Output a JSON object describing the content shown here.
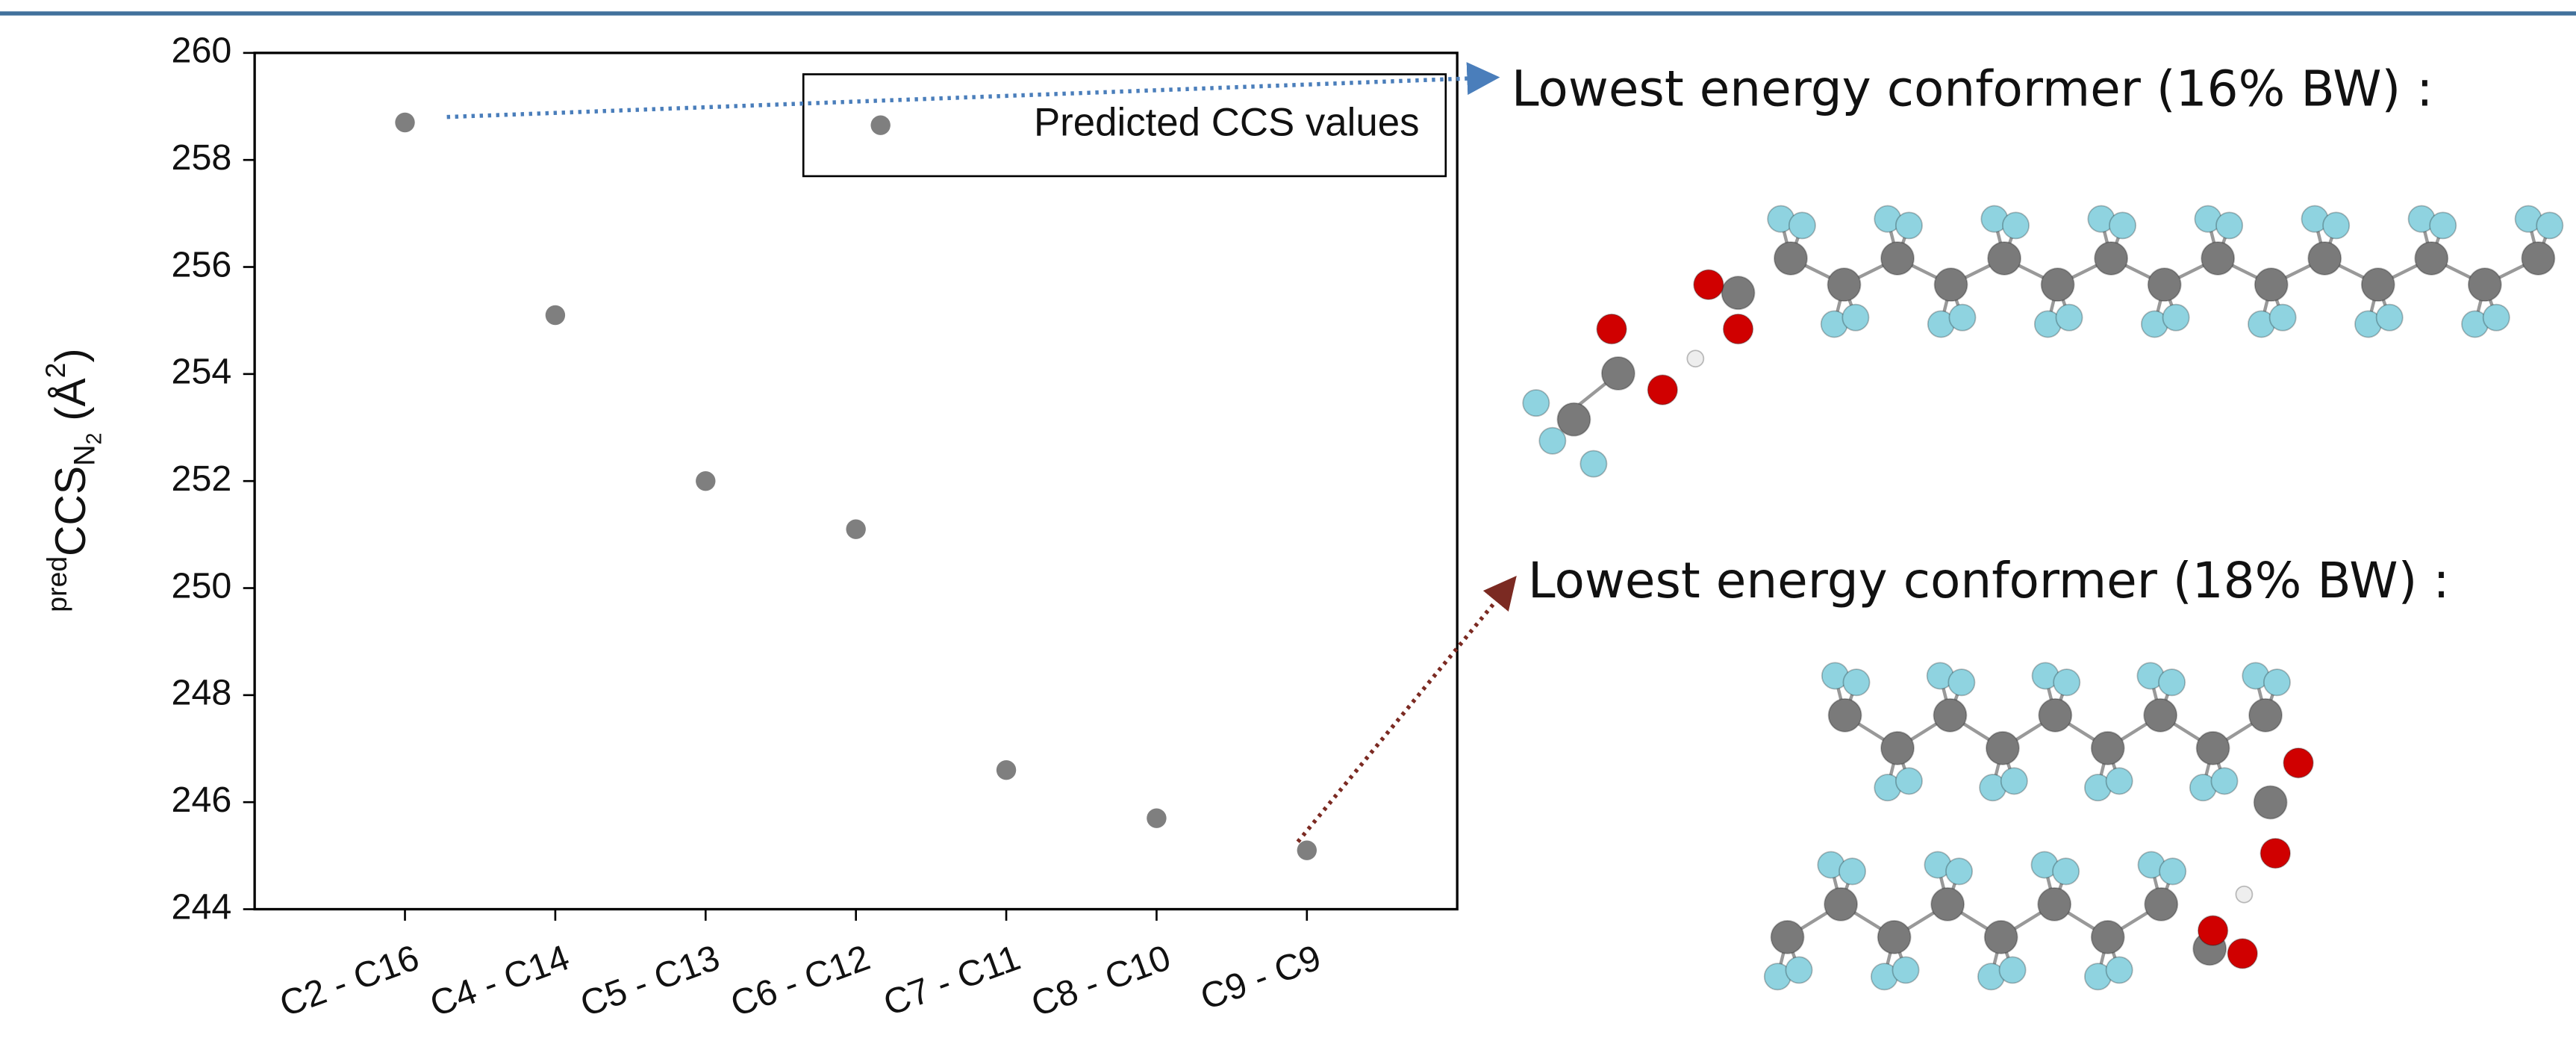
{
  "chart_data": {
    "type": "scatter",
    "categories": [
      "C2 - C16",
      "C4 - C14",
      "C5 - C13",
      "C6 - C12",
      "C7 - C11",
      "C8 - C10",
      "C9 - C9"
    ],
    "series": [
      {
        "name": "Predicted CCS values",
        "color": "#7f7f7f",
        "values": [
          258.7,
          255.1,
          252.0,
          251.1,
          246.6,
          245.7,
          245.1
        ]
      }
    ],
    "y_label": [
      "pred",
      "CCS",
      "N",
      "2",
      " (Å",
      "2",
      ")"
    ],
    "ylim": [
      244,
      260
    ],
    "yticks": [
      244,
      246,
      248,
      250,
      252,
      254,
      256,
      258,
      260
    ],
    "legend": "upper right",
    "annotations": [
      "Lowest energy conformer (16% BW) :",
      "Lowest energy conformer (18% BW) :"
    ]
  }
}
